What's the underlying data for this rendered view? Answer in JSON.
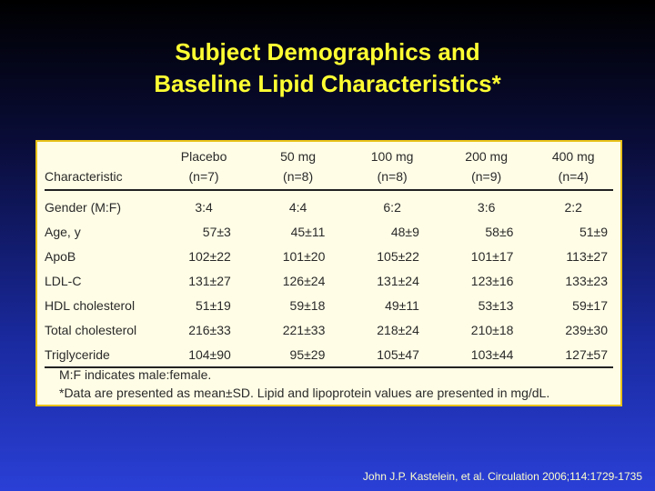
{
  "title": {
    "line1": "Subject Demographics and",
    "line2": "Baseline Lipid Characteristics*"
  },
  "table": {
    "header_top": [
      "",
      "Placebo",
      "50 mg",
      "100 mg",
      "200 mg",
      "400 mg"
    ],
    "header_bottom": [
      "Characteristic",
      "(n=7)",
      "(n=8)",
      "(n=8)",
      "(n=9)",
      "(n=4)"
    ],
    "rows": [
      [
        "Gender (M:F)",
        "3:4",
        "4:4",
        "6:2",
        "3:6",
        "2:2"
      ],
      [
        "Age, y",
        "57±3",
        "45±11",
        "48±9",
        "58±6",
        "51±9"
      ],
      [
        "ApoB",
        "102±22",
        "101±20",
        "105±22",
        "101±17",
        "113±27"
      ],
      [
        "LDL-C",
        "131±27",
        "126±24",
        "131±24",
        "123±16",
        "133±23"
      ],
      [
        "HDL cholesterol",
        "51±19",
        "59±18",
        "49±11",
        "53±13",
        "59±17"
      ],
      [
        "Total cholesterol",
        "216±33",
        "221±33",
        "218±24",
        "210±18",
        "239±30"
      ],
      [
        "Triglyceride",
        "104±90",
        "95±29",
        "105±47",
        "103±44",
        "127±57"
      ]
    ]
  },
  "footnotes": {
    "line1": "M:F indicates male:female.",
    "line2": "*Data are presented as mean±SD. Lipid and lipoprotein values are presented in mg/dL."
  },
  "citation": "John J.P. Kastelein, et al. Circulation 2006;114:1729-1735"
}
